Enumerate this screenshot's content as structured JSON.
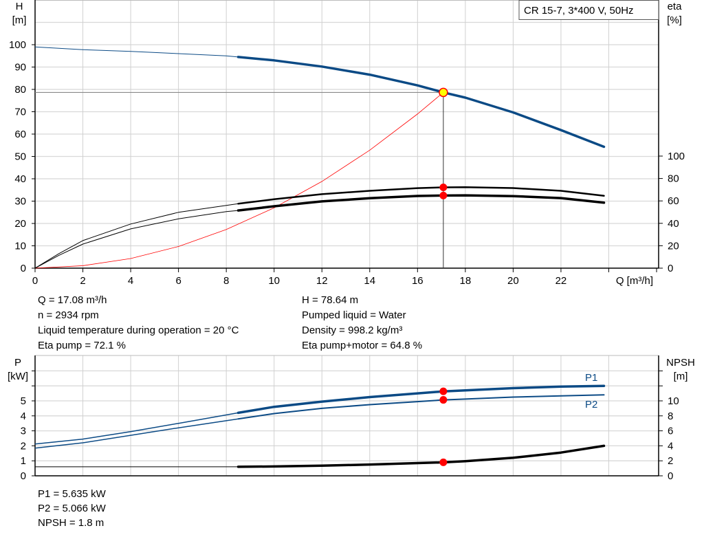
{
  "chart_data": [
    {
      "type": "line",
      "title": "CR 15-7, 3*400 V, 50Hz",
      "xlabel": "Q [m³/h]",
      "ylabel": "H\n[m]",
      "ylabel_left": {
        "name": "H",
        "unit": "[m]"
      },
      "ylabel_right": {
        "name": "eta",
        "unit": "[%]"
      },
      "xlim": [
        0,
        26
      ],
      "ylim_left": [
        0,
        120
      ],
      "ylim_right": [
        0,
        147
      ],
      "x_ticks": [
        "0",
        "2",
        "4",
        "6",
        "8",
        "10",
        "12",
        "14",
        "16",
        "18",
        "20",
        "22"
      ],
      "y_ticks_left": [
        "0",
        "10",
        "20",
        "30",
        "40",
        "50",
        "60",
        "70",
        "80",
        "90",
        "100"
      ],
      "y_ticks_right": [
        "0",
        "20",
        "40",
        "60",
        "80",
        "100"
      ],
      "grid": true,
      "series": [
        {
          "id": "head",
          "axis": "left",
          "color": "#0b4a85",
          "x": [
            0,
            2,
            4,
            6,
            8,
            8.5,
            10,
            12,
            14,
            16,
            17.08,
            18,
            20,
            22,
            23.8
          ],
          "y": [
            99,
            97.8,
            97,
            96,
            95,
            94.5,
            93,
            90.2,
            86.6,
            81.8,
            78.64,
            76.3,
            69.7,
            61.8,
            54.3
          ]
        },
        {
          "id": "eta-pump",
          "axis": "right",
          "color": "#000000",
          "x": [
            0,
            1,
            2,
            4,
            6,
            8,
            8.5,
            10,
            12,
            14,
            16,
            17.08,
            18,
            20,
            22,
            23.8
          ],
          "y": [
            0,
            13,
            24.6,
            39.4,
            49.8,
            56,
            57.5,
            61.5,
            66,
            69,
            71.4,
            72.1,
            72.3,
            71.5,
            69,
            64.6
          ]
        },
        {
          "id": "eta-pump-motor",
          "axis": "right",
          "color": "#000000",
          "x": [
            0,
            1,
            2,
            4,
            6,
            8,
            8.5,
            10,
            12,
            14,
            16,
            17.08,
            18,
            20,
            22,
            23.8
          ],
          "y": [
            0,
            11.5,
            21.5,
            35,
            44,
            50.4,
            51.5,
            55.2,
            59.6,
            62.4,
            64.4,
            64.8,
            65,
            64.3,
            62.5,
            58.4
          ]
        },
        {
          "id": "system-curve",
          "axis": "left",
          "color": "#ff0000",
          "x": [
            0,
            2,
            4,
            6,
            8,
            10,
            12,
            14,
            16,
            17.08
          ],
          "y": [
            0,
            1.1,
            4.3,
            9.7,
            17.3,
            27,
            38.8,
            52.8,
            69,
            78.64
          ]
        }
      ],
      "thick_from_q": 8.5,
      "duty_point": {
        "q": 17.08,
        "h": 78.64,
        "eta_pump": 72.1,
        "eta_pump_motor": 64.8,
        "marker_color": "#ffff00"
      }
    },
    {
      "type": "line",
      "xlabel": "",
      "ylabel_left": {
        "name": "P",
        "unit": "[kW]"
      },
      "ylabel_right": {
        "name": "NPSH",
        "unit": "[m]"
      },
      "xlim": [
        0,
        26
      ],
      "ylim_left": [
        0,
        8
      ],
      "ylim_right": [
        0,
        16
      ],
      "y_ticks_left": [
        "0",
        "1",
        "2",
        "3",
        "4",
        "5"
      ],
      "y_ticks_right": [
        "0",
        "2",
        "4",
        "6",
        "8",
        "10"
      ],
      "grid": true,
      "series": [
        {
          "id": "p1",
          "name": "P1",
          "axis": "left",
          "color": "#0b4a85",
          "x": [
            0,
            2,
            4,
            6,
            8.5,
            10,
            12,
            14,
            16,
            17.08,
            18,
            20,
            22,
            23.8
          ],
          "y": [
            2.12,
            2.45,
            2.95,
            3.5,
            4.2,
            4.6,
            4.95,
            5.25,
            5.5,
            5.635,
            5.7,
            5.85,
            5.95,
            6.0
          ]
        },
        {
          "id": "p2",
          "name": "P2",
          "axis": "left",
          "color": "#0b4a85",
          "x": [
            0,
            2,
            4,
            6,
            8.5,
            10,
            12,
            14,
            16,
            17.08,
            18,
            20,
            22,
            23.8
          ],
          "y": [
            1.85,
            2.2,
            2.7,
            3.2,
            3.8,
            4.15,
            4.5,
            4.75,
            4.95,
            5.066,
            5.12,
            5.25,
            5.33,
            5.4
          ]
        },
        {
          "id": "npsh",
          "axis": "right",
          "color": "#000000",
          "x": [
            0,
            8.5,
            10,
            12,
            14,
            16,
            17.08,
            18,
            20,
            22,
            23.8
          ],
          "y": [
            1.2,
            1.2,
            1.25,
            1.35,
            1.5,
            1.7,
            1.8,
            1.95,
            2.4,
            3.1,
            4.0
          ]
        }
      ],
      "duty_point": {
        "q": 17.08,
        "p1": 5.635,
        "p2": 5.066,
        "npsh": 1.8
      }
    }
  ],
  "info": {
    "left": [
      "Q = 17.08 m³/h",
      "n = 2934 rpm",
      "Liquid temperature during operation = 20 °C",
      "Eta pump = 72.1 %"
    ],
    "right": [
      "H = 78.64 m",
      "Pumped liquid = Water",
      "Density = 998.2 kg/m³",
      "Eta pump+motor = 64.8 %"
    ],
    "bottom": [
      "P1 = 5.635 kW",
      "P2 = 5.066 kW",
      "NPSH = 1.8 m"
    ]
  }
}
